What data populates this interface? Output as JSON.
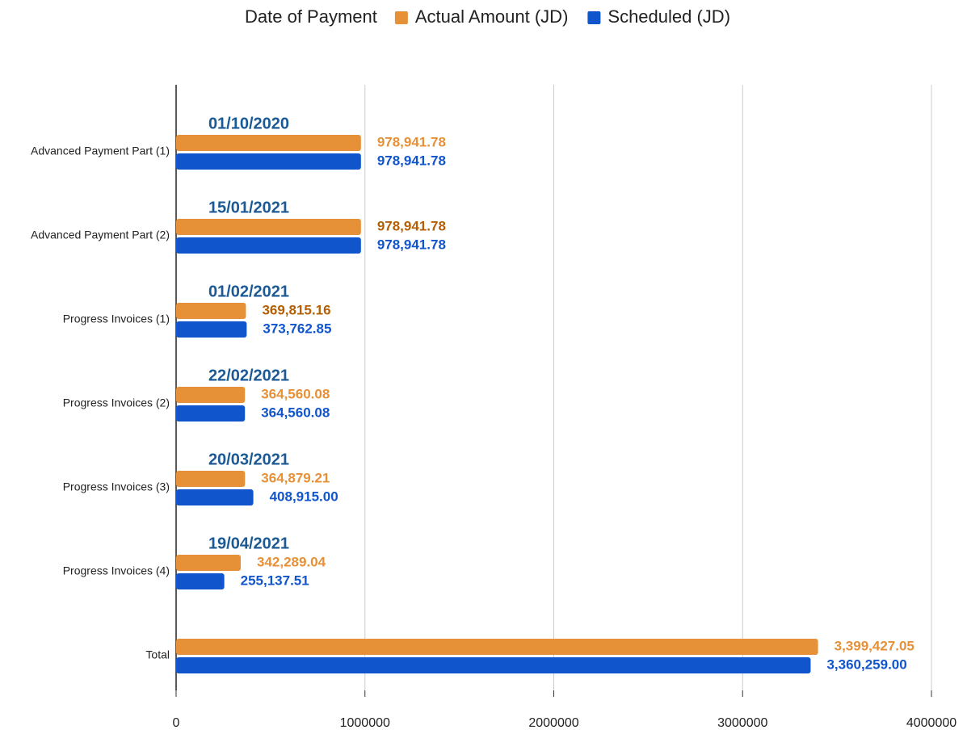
{
  "chart_data": {
    "type": "bar",
    "orientation": "horizontal",
    "categories": [
      "Advanced Payment Part (1)",
      "Advanced Payment Part (2)",
      "Progress Invoices (1)",
      "Progress Invoices (2)",
      "Progress Invoices (3)",
      "Progress Invoices (4)",
      "Total"
    ],
    "annotations": {
      "name": "Date of Payment",
      "color": "#1c5a96",
      "labels": [
        "01/10/2020",
        "15/01/2021",
        "01/02/2021",
        "22/02/2021",
        "20/03/2021",
        "19/04/2021",
        null
      ]
    },
    "series": [
      {
        "name": "Actual Amount (JD)",
        "color": "#e69138",
        "values": [
          978941.78,
          978941.78,
          369815.16,
          364560.08,
          364879.21,
          342289.04,
          3399427.05
        ],
        "value_labels": [
          "978,941.78",
          "978,941.78",
          "369,815.16",
          "364,560.08",
          "364,879.21",
          "342,289.04",
          "3,399,427.05"
        ],
        "label_colors": [
          "#e69138",
          "#b45f06",
          "#b45f06",
          "#e69138",
          "#e69138",
          "#e69138",
          "#e69138"
        ]
      },
      {
        "name": "Scheduled  (JD)",
        "color": "#1155cc",
        "values": [
          978941.78,
          978941.78,
          373762.85,
          364560.08,
          408915.0,
          255137.51,
          3360259.0
        ],
        "value_labels": [
          "978,941.78",
          "978,941.78",
          "373,762.85",
          "364,560.08",
          "408,915.00",
          "255,137.51",
          "3,360,259.00"
        ],
        "label_colors": [
          "#1155cc",
          "#1155cc",
          "#1155cc",
          "#1155cc",
          "#1155cc",
          "#1155cc",
          "#1155cc"
        ]
      }
    ],
    "xlim": [
      0,
      4000000
    ],
    "xticks": [
      0,
      1000000,
      2000000,
      3000000,
      4000000
    ],
    "grid": true,
    "legend": "top"
  }
}
